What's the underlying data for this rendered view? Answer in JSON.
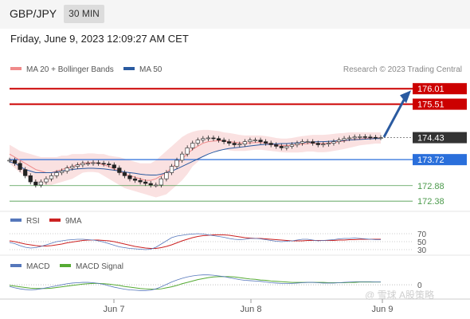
{
  "header": {
    "pair": "GBP/JPY",
    "timeframe": "30 MIN"
  },
  "timestamp": "Friday, June 9, 2023 12:09:27 AM CET",
  "attribution": "Research © 2023 Trading Central",
  "watermark": "@ 雪球 A股策略",
  "colors": {
    "resistance": "#cc0000",
    "support": "#2a6fdb",
    "minor_support": "#4c9a4c",
    "ma20": "#f08a8a",
    "ma50": "#2a5aa0",
    "arrow": "#2a5aa0",
    "last": "#333333"
  },
  "chart_data": [
    {
      "type": "line",
      "panel": "price",
      "legend": [
        {
          "name": "MA 20 + Bollinger Bands",
          "color": "#f08a8a"
        },
        {
          "name": "MA 50",
          "color": "#2a5aa0"
        }
      ],
      "x_ticks": [
        "Jun 7",
        "Jun 8",
        "Jun 9"
      ],
      "ylim": [
        172.05,
        176.35
      ],
      "levels": [
        {
          "label": "176.01",
          "value": 176.01,
          "kind": "resistance"
        },
        {
          "label": "175.51",
          "value": 175.51,
          "kind": "resistance"
        },
        {
          "label": "174.43",
          "value": 174.43,
          "kind": "last"
        },
        {
          "label": "173.72",
          "value": 173.72,
          "kind": "support"
        },
        {
          "label": "172.88",
          "value": 172.88,
          "kind": "minor_support"
        },
        {
          "label": "172.38",
          "value": 172.38,
          "kind": "minor_support"
        }
      ],
      "price_close": [
        173.7,
        173.6,
        173.4,
        173.2,
        173.0,
        172.9,
        173.0,
        173.1,
        173.2,
        173.3,
        173.35,
        173.45,
        173.5,
        173.55,
        173.6,
        173.6,
        173.62,
        173.6,
        173.58,
        173.55,
        173.45,
        173.3,
        173.2,
        173.1,
        173.05,
        173.0,
        172.95,
        172.9,
        172.9,
        173.1,
        173.3,
        173.5,
        173.7,
        173.9,
        174.1,
        174.25,
        174.35,
        174.4,
        174.42,
        174.4,
        174.35,
        174.3,
        174.25,
        174.2,
        174.22,
        174.3,
        174.35,
        174.35,
        174.3,
        174.25,
        174.2,
        174.15,
        174.1,
        174.15,
        174.2,
        174.25,
        174.3,
        174.3,
        174.25,
        174.2,
        174.22,
        174.25,
        174.3,
        174.35,
        174.4,
        174.42,
        174.45,
        174.46,
        174.45,
        174.44,
        174.43,
        174.43
      ],
      "ma20": [
        173.9,
        173.8,
        173.7,
        173.6,
        173.5,
        173.4,
        173.35,
        173.3,
        173.3,
        173.35,
        173.4,
        173.45,
        173.5,
        173.55,
        173.6,
        173.62,
        173.62,
        173.6,
        173.55,
        173.5,
        173.42,
        173.35,
        173.25,
        173.2,
        173.15,
        173.1,
        173.05,
        173.05,
        173.1,
        173.2,
        173.3,
        173.45,
        173.6,
        173.75,
        173.9,
        174.05,
        174.15,
        174.25,
        174.3,
        174.32,
        174.33,
        174.33,
        174.3,
        174.28,
        174.26,
        174.25,
        174.26,
        174.27,
        174.27,
        174.25,
        174.22,
        174.2,
        174.18,
        174.17,
        174.18,
        174.2,
        174.22,
        174.24,
        174.25,
        174.24,
        174.24,
        174.25,
        174.27,
        174.3,
        174.32,
        174.35,
        174.37,
        174.39,
        174.4,
        174.41,
        174.42,
        174.42
      ],
      "ma50": [
        173.65,
        173.6,
        173.5,
        173.4,
        173.35,
        173.3,
        173.3,
        173.3,
        173.3,
        173.32,
        173.35,
        173.38,
        173.4,
        173.42,
        173.43,
        173.44,
        173.44,
        173.43,
        173.42,
        173.4,
        173.38,
        173.35,
        173.32,
        173.3,
        173.28,
        173.25,
        173.23,
        173.22,
        173.22,
        173.25,
        173.3,
        173.35,
        173.42,
        173.5,
        173.58,
        173.66,
        173.74,
        173.82,
        173.9,
        173.96,
        174.01,
        174.05,
        174.08,
        174.1,
        174.12,
        174.14,
        174.16,
        174.18,
        174.2,
        174.21,
        174.22,
        174.23,
        174.24,
        174.24,
        174.25,
        174.26,
        174.27,
        174.28,
        174.29,
        174.3,
        174.3,
        174.31,
        174.32,
        174.33,
        174.34,
        174.35,
        174.36,
        174.37,
        174.38,
        174.39,
        174.4,
        174.4
      ],
      "bb_upper": [
        174.2,
        174.1,
        174.0,
        173.95,
        173.9,
        173.85,
        173.8,
        173.8,
        173.8,
        173.8,
        173.85,
        173.85,
        173.9,
        173.9,
        173.9,
        173.92,
        173.92,
        173.9,
        173.9,
        173.85,
        173.82,
        173.8,
        173.75,
        173.7,
        173.65,
        173.6,
        173.6,
        173.6,
        173.7,
        173.85,
        174.0,
        174.15,
        174.3,
        174.45,
        174.55,
        174.62,
        174.66,
        174.68,
        174.68,
        174.66,
        174.64,
        174.6,
        174.58,
        174.55,
        174.52,
        174.5,
        174.5,
        174.5,
        174.5,
        174.48,
        174.45,
        174.42,
        174.4,
        174.4,
        174.42,
        174.45,
        174.48,
        174.5,
        174.52,
        174.52,
        174.52,
        174.53,
        174.55,
        174.57,
        174.58,
        174.6,
        174.6,
        174.6,
        174.6,
        174.6,
        174.6,
        174.6
      ],
      "bb_lower": [
        173.6,
        173.45,
        173.3,
        173.2,
        173.1,
        173.0,
        172.95,
        172.9,
        172.9,
        172.95,
        173.0,
        173.05,
        173.1,
        173.2,
        173.3,
        173.32,
        173.32,
        173.3,
        173.2,
        173.1,
        173.0,
        172.9,
        172.8,
        172.75,
        172.7,
        172.65,
        172.6,
        172.55,
        172.5,
        172.55,
        172.6,
        172.75,
        172.9,
        173.05,
        173.25,
        173.5,
        173.65,
        173.82,
        173.92,
        173.98,
        174.02,
        174.06,
        174.02,
        174.0,
        174.0,
        174.0,
        174.02,
        174.04,
        174.04,
        174.02,
        174.0,
        173.98,
        173.96,
        173.95,
        173.95,
        173.95,
        173.96,
        173.98,
        173.98,
        173.96,
        173.96,
        173.97,
        174.0,
        174.03,
        174.06,
        174.1,
        174.14,
        174.18,
        174.2,
        174.22,
        174.24,
        174.24
      ]
    },
    {
      "type": "line",
      "panel": "rsi",
      "legend": [
        {
          "name": "RSI",
          "color": "#5577bb"
        },
        {
          "name": "9MA",
          "color": "#cc2222"
        }
      ],
      "ylim": [
        20,
        80
      ],
      "levels": [
        {
          "label": "70",
          "value": 70
        },
        {
          "label": "50",
          "value": 50
        },
        {
          "label": "30",
          "value": 30
        }
      ],
      "rsi": [
        48,
        45,
        40,
        36,
        34,
        35,
        38,
        42,
        46,
        50,
        52,
        54,
        55,
        56,
        56,
        55,
        54,
        52,
        49,
        45,
        41,
        37,
        35,
        33,
        32,
        31,
        30,
        31,
        36,
        44,
        52,
        60,
        64,
        66,
        68,
        69,
        70,
        69,
        67,
        65,
        63,
        61,
        58,
        56,
        55,
        56,
        58,
        58,
        57,
        55,
        53,
        51,
        50,
        51,
        52,
        54,
        56,
        56,
        54,
        52,
        53,
        54,
        55,
        57,
        58,
        58,
        59,
        58,
        57,
        56,
        55,
        55
      ],
      "rsi_ma": [
        52,
        50,
        47,
        44,
        42,
        40,
        39,
        39,
        40,
        42,
        44,
        47,
        49,
        51,
        53,
        54,
        54,
        54,
        53,
        52,
        50,
        47,
        44,
        41,
        38,
        36,
        34,
        33,
        33,
        35,
        38,
        42,
        47,
        52,
        56,
        60,
        63,
        65,
        66,
        67,
        67,
        67,
        66,
        64,
        62,
        60,
        59,
        58,
        58,
        57,
        56,
        55,
        54,
        53,
        52,
        52,
        52,
        53,
        53,
        53,
        53,
        53,
        53,
        54,
        54,
        55,
        55,
        56,
        56,
        56,
        56,
        56
      ]
    },
    {
      "type": "line",
      "panel": "macd",
      "legend": [
        {
          "name": "MACD",
          "color": "#5577bb"
        },
        {
          "name": "MACD Signal",
          "color": "#55aa33"
        }
      ],
      "ylim": [
        -0.35,
        0.4
      ],
      "levels": [
        {
          "label": "0",
          "value": 0
        }
      ],
      "macd": [
        -0.05,
        -0.09,
        -0.12,
        -0.14,
        -0.15,
        -0.14,
        -0.12,
        -0.09,
        -0.06,
        -0.03,
        0.0,
        0.03,
        0.05,
        0.06,
        0.07,
        0.07,
        0.06,
        0.04,
        0.01,
        -0.03,
        -0.07,
        -0.1,
        -0.13,
        -0.15,
        -0.16,
        -0.17,
        -0.17,
        -0.16,
        -0.12,
        -0.06,
        0.01,
        0.08,
        0.14,
        0.19,
        0.23,
        0.26,
        0.28,
        0.29,
        0.29,
        0.28,
        0.26,
        0.24,
        0.21,
        0.18,
        0.15,
        0.13,
        0.12,
        0.11,
        0.1,
        0.08,
        0.06,
        0.05,
        0.04,
        0.04,
        0.04,
        0.05,
        0.06,
        0.07,
        0.07,
        0.06,
        0.05,
        0.05,
        0.05,
        0.06,
        0.07,
        0.08,
        0.09,
        0.09,
        0.09,
        0.09,
        0.08,
        0.08
      ],
      "signal": [
        -0.02,
        -0.04,
        -0.06,
        -0.08,
        -0.1,
        -0.11,
        -0.11,
        -0.11,
        -0.1,
        -0.08,
        -0.06,
        -0.04,
        -0.02,
        0.0,
        0.02,
        0.03,
        0.04,
        0.04,
        0.03,
        0.02,
        0.0,
        -0.02,
        -0.05,
        -0.07,
        -0.09,
        -0.11,
        -0.12,
        -0.13,
        -0.13,
        -0.12,
        -0.09,
        -0.06,
        -0.02,
        0.03,
        0.07,
        0.11,
        0.15,
        0.18,
        0.21,
        0.23,
        0.24,
        0.24,
        0.24,
        0.23,
        0.21,
        0.19,
        0.17,
        0.16,
        0.14,
        0.13,
        0.11,
        0.1,
        0.09,
        0.08,
        0.07,
        0.07,
        0.07,
        0.07,
        0.07,
        0.07,
        0.07,
        0.06,
        0.06,
        0.06,
        0.06,
        0.07,
        0.07,
        0.08,
        0.08,
        0.08,
        0.08,
        0.08
      ]
    }
  ]
}
